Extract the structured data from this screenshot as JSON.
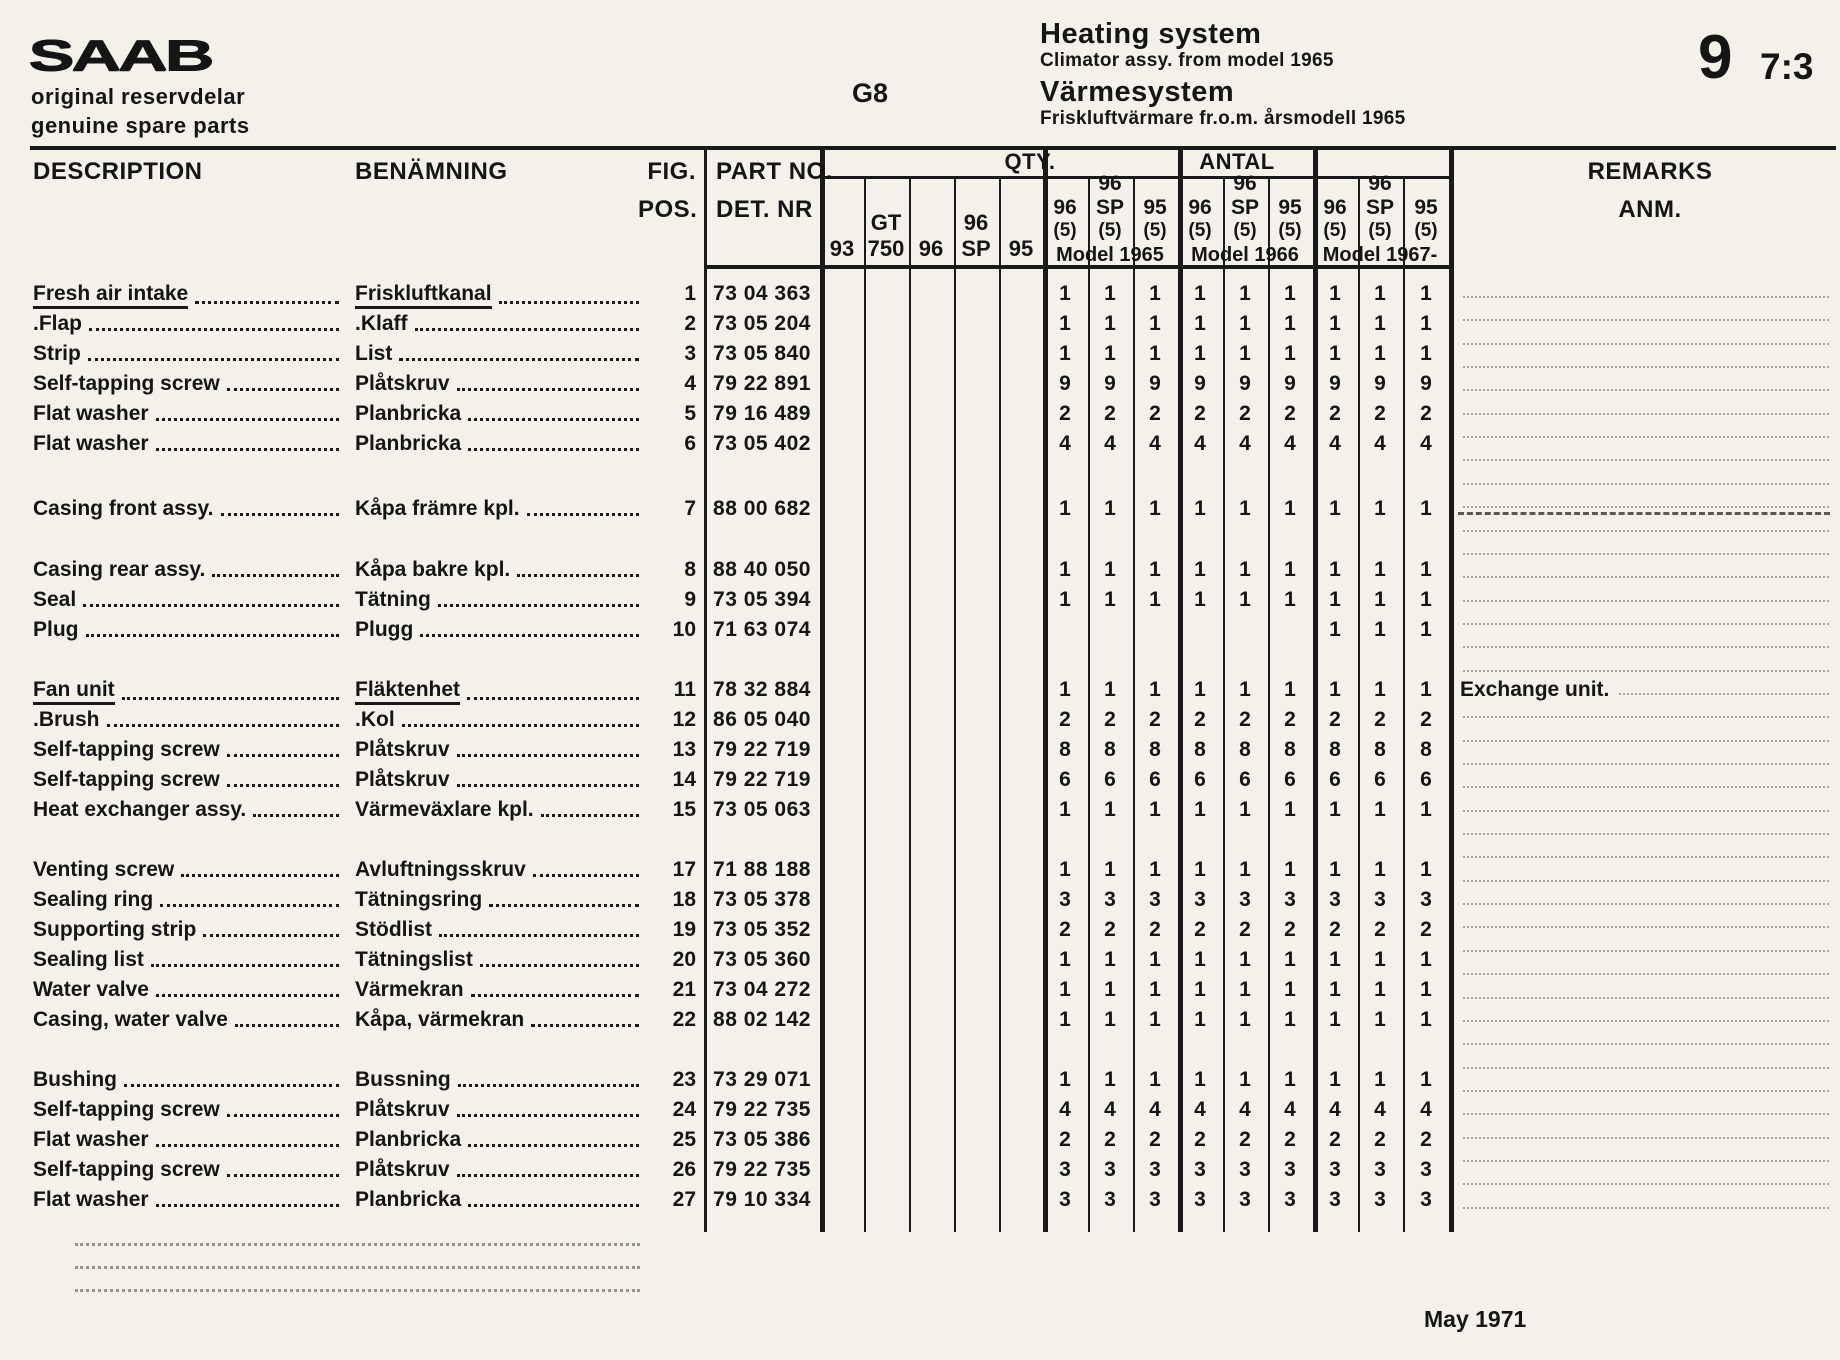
{
  "header": {
    "logo": "SAAB",
    "tagline1": "original reservdelar",
    "tagline2": "genuine spare parts",
    "section_code": "G8",
    "title_en": "Heating system",
    "subtitle_en": "Climator assy. from model 1965",
    "title_sv": "Värmesystem",
    "subtitle_sv": "Friskluftvärmare fr.o.m. årsmodell 1965",
    "page_big": "9",
    "page_small": "7:3"
  },
  "table": {
    "headers": {
      "description": "DESCRIPTION",
      "benamning": "BENÄMNING",
      "fig": "FIG.",
      "pos": "POS.",
      "partno": "PART NO.",
      "detnr": "DET. NR",
      "qty": "QTY.",
      "antal": "ANTAL",
      "remarks": "REMARKS",
      "anm": "ANM."
    },
    "pre_columns": [
      [
        "93"
      ],
      [
        "GT",
        "750"
      ],
      [
        "96"
      ],
      [
        "96",
        "SP"
      ],
      [
        "95"
      ]
    ],
    "spec_columns": [
      [
        "96",
        "(5)"
      ],
      [
        "96",
        "SP",
        "(5)"
      ],
      [
        "95",
        "(5)"
      ]
    ],
    "model_groups": [
      "Model 1965",
      "Model 1966",
      "Model 1967-"
    ],
    "qty_column_order": [
      "93",
      "GT 750",
      "96",
      "96 SP",
      "95",
      "96 (5) 1965",
      "96 SP (5) 1965",
      "95 (5) 1965",
      "96 (5) 1966",
      "96 SP (5) 1966",
      "95 (5) 1966",
      "96 (5) 1967-",
      "96 SP (5) 1967-",
      "95 (5) 1967-"
    ],
    "rows": [
      {
        "description": "Fresh air intake",
        "benamning": "Friskluftkanal",
        "fig": "1",
        "part_no": "73 04 363",
        "qty": [
          "",
          "",
          "",
          "",
          "",
          "1",
          "1",
          "1",
          "1",
          "1",
          "1",
          "1",
          "1",
          "1"
        ],
        "remark": "",
        "underline": true
      },
      {
        "description": ".Flap",
        "benamning": ".Klaff",
        "fig": "2",
        "part_no": "73 05 204",
        "qty": [
          "",
          "",
          "",
          "",
          "",
          "1",
          "1",
          "1",
          "1",
          "1",
          "1",
          "1",
          "1",
          "1"
        ],
        "remark": "",
        "underline": false
      },
      {
        "description": "Strip",
        "benamning": "List",
        "fig": "3",
        "part_no": "73 05 840",
        "qty": [
          "",
          "",
          "",
          "",
          "",
          "1",
          "1",
          "1",
          "1",
          "1",
          "1",
          "1",
          "1",
          "1"
        ],
        "remark": "",
        "underline": false
      },
      {
        "description": "Self-tapping screw",
        "benamning": "Plåtskruv",
        "fig": "4",
        "part_no": "79 22 891",
        "qty": [
          "",
          "",
          "",
          "",
          "",
          "9",
          "9",
          "9",
          "9",
          "9",
          "9",
          "9",
          "9",
          "9"
        ],
        "remark": "",
        "underline": false
      },
      {
        "description": "Flat washer",
        "benamning": "Planbricka",
        "fig": "5",
        "part_no": "79 16 489",
        "qty": [
          "",
          "",
          "",
          "",
          "",
          "2",
          "2",
          "2",
          "2",
          "2",
          "2",
          "2",
          "2",
          "2"
        ],
        "remark": "",
        "underline": false
      },
      {
        "description": "Flat washer",
        "benamning": "Planbricka",
        "fig": "6",
        "part_no": "73 05 402",
        "qty": [
          "",
          "",
          "",
          "",
          "",
          "4",
          "4",
          "4",
          "4",
          "4",
          "4",
          "4",
          "4",
          "4"
        ],
        "remark": "",
        "underline": false
      },
      {
        "description": "Casing front assy.",
        "benamning": "Kåpa främre kpl.",
        "fig": "7",
        "part_no": "88 00 682",
        "qty": [
          "",
          "",
          "",
          "",
          "",
          "1",
          "1",
          "1",
          "1",
          "1",
          "1",
          "1",
          "1",
          "1"
        ],
        "remark": "",
        "underline": false
      },
      {
        "description": "Casing rear assy.",
        "benamning": "Kåpa bakre kpl.",
        "fig": "8",
        "part_no": "88 40 050",
        "qty": [
          "",
          "",
          "",
          "",
          "",
          "1",
          "1",
          "1",
          "1",
          "1",
          "1",
          "1",
          "1",
          "1"
        ],
        "remark": "",
        "underline": false
      },
      {
        "description": "Seal",
        "benamning": "Tätning",
        "fig": "9",
        "part_no": "73 05 394",
        "qty": [
          "",
          "",
          "",
          "",
          "",
          "1",
          "1",
          "1",
          "1",
          "1",
          "1",
          "1",
          "1",
          "1"
        ],
        "remark": "",
        "underline": false
      },
      {
        "description": "Plug",
        "benamning": "Plugg",
        "fig": "10",
        "part_no": "71 63 074",
        "qty": [
          "",
          "",
          "",
          "",
          "",
          "",
          "",
          "",
          "",
          "",
          "",
          "1",
          "1",
          "1"
        ],
        "remark": "",
        "underline": false
      },
      {
        "description": "Fan unit",
        "benamning": "Fläktenhet",
        "fig": "11",
        "part_no": "78 32 884",
        "qty": [
          "",
          "",
          "",
          "",
          "",
          "1",
          "1",
          "1",
          "1",
          "1",
          "1",
          "1",
          "1",
          "1"
        ],
        "remark": "Exchange unit.",
        "underline": true
      },
      {
        "description": ".Brush",
        "benamning": ".Kol",
        "fig": "12",
        "part_no": "86 05 040",
        "qty": [
          "",
          "",
          "",
          "",
          "",
          "2",
          "2",
          "2",
          "2",
          "2",
          "2",
          "2",
          "2",
          "2"
        ],
        "remark": "",
        "underline": false
      },
      {
        "description": "Self-tapping screw",
        "benamning": "Plåtskruv",
        "fig": "13",
        "part_no": "79 22 719",
        "qty": [
          "",
          "",
          "",
          "",
          "",
          "8",
          "8",
          "8",
          "8",
          "8",
          "8",
          "8",
          "8",
          "8"
        ],
        "remark": "",
        "underline": false
      },
      {
        "description": "Self-tapping screw",
        "benamning": "Plåtskruv",
        "fig": "14",
        "part_no": "79 22 719",
        "qty": [
          "",
          "",
          "",
          "",
          "",
          "6",
          "6",
          "6",
          "6",
          "6",
          "6",
          "6",
          "6",
          "6"
        ],
        "remark": "",
        "underline": false
      },
      {
        "description": "Heat exchanger assy.",
        "benamning": "Värmeväxlare kpl.",
        "fig": "15",
        "part_no": "73 05 063",
        "qty": [
          "",
          "",
          "",
          "",
          "",
          "1",
          "1",
          "1",
          "1",
          "1",
          "1",
          "1",
          "1",
          "1"
        ],
        "remark": "",
        "underline": false
      },
      {
        "description": "Venting screw",
        "benamning": "Avluftningsskruv",
        "fig": "17",
        "part_no": "71 88 188",
        "qty": [
          "",
          "",
          "",
          "",
          "",
          "1",
          "1",
          "1",
          "1",
          "1",
          "1",
          "1",
          "1",
          "1"
        ],
        "remark": "",
        "underline": false
      },
      {
        "description": "Sealing ring",
        "benamning": "Tätningsring",
        "fig": "18",
        "part_no": "73 05 378",
        "qty": [
          "",
          "",
          "",
          "",
          "",
          "3",
          "3",
          "3",
          "3",
          "3",
          "3",
          "3",
          "3",
          "3"
        ],
        "remark": "",
        "underline": false
      },
      {
        "description": "Supporting strip",
        "benamning": "Stödlist",
        "fig": "19",
        "part_no": "73 05 352",
        "qty": [
          "",
          "",
          "",
          "",
          "",
          "2",
          "2",
          "2",
          "2",
          "2",
          "2",
          "2",
          "2",
          "2"
        ],
        "remark": "",
        "underline": false
      },
      {
        "description": "Sealing list",
        "benamning": "Tätningslist",
        "fig": "20",
        "part_no": "73 05 360",
        "qty": [
          "",
          "",
          "",
          "",
          "",
          "1",
          "1",
          "1",
          "1",
          "1",
          "1",
          "1",
          "1",
          "1"
        ],
        "remark": "",
        "underline": false
      },
      {
        "description": "Water valve",
        "benamning": "Värmekran",
        "fig": "21",
        "part_no": "73 04 272",
        "qty": [
          "",
          "",
          "",
          "",
          "",
          "1",
          "1",
          "1",
          "1",
          "1",
          "1",
          "1",
          "1",
          "1"
        ],
        "remark": "",
        "underline": false
      },
      {
        "description": "Casing, water valve",
        "benamning": "Kåpa, värmekran",
        "fig": "22",
        "part_no": "88 02 142",
        "qty": [
          "",
          "",
          "",
          "",
          "",
          "1",
          "1",
          "1",
          "1",
          "1",
          "1",
          "1",
          "1",
          "1"
        ],
        "remark": "",
        "underline": false
      },
      {
        "description": "Bushing",
        "benamning": "Bussning",
        "fig": "23",
        "part_no": "73 29 071",
        "qty": [
          "",
          "",
          "",
          "",
          "",
          "1",
          "1",
          "1",
          "1",
          "1",
          "1",
          "1",
          "1",
          "1"
        ],
        "remark": "",
        "underline": false
      },
      {
        "description": "Self-tapping screw",
        "benamning": "Plåtskruv",
        "fig": "24",
        "part_no": "79 22 735",
        "qty": [
          "",
          "",
          "",
          "",
          "",
          "4",
          "4",
          "4",
          "4",
          "4",
          "4",
          "4",
          "4",
          "4"
        ],
        "remark": "",
        "underline": false
      },
      {
        "description": "Flat washer",
        "benamning": "Planbricka",
        "fig": "25",
        "part_no": "73 05 386",
        "qty": [
          "",
          "",
          "",
          "",
          "",
          "2",
          "2",
          "2",
          "2",
          "2",
          "2",
          "2",
          "2",
          "2"
        ],
        "remark": "",
        "underline": false
      },
      {
        "description": "Self-tapping screw",
        "benamning": "Plåtskruv",
        "fig": "26",
        "part_no": "79 22 735",
        "qty": [
          "",
          "",
          "",
          "",
          "",
          "3",
          "3",
          "3",
          "3",
          "3",
          "3",
          "3",
          "3",
          "3"
        ],
        "remark": "",
        "underline": false
      },
      {
        "description": "Flat washer",
        "benamning": "Planbricka",
        "fig": "27",
        "part_no": "79 10 334",
        "qty": [
          "",
          "",
          "",
          "",
          "",
          "3",
          "3",
          "3",
          "3",
          "3",
          "3",
          "3",
          "3",
          "3"
        ],
        "remark": "",
        "underline": false
      }
    ]
  },
  "footer": {
    "date": "May 1971"
  }
}
